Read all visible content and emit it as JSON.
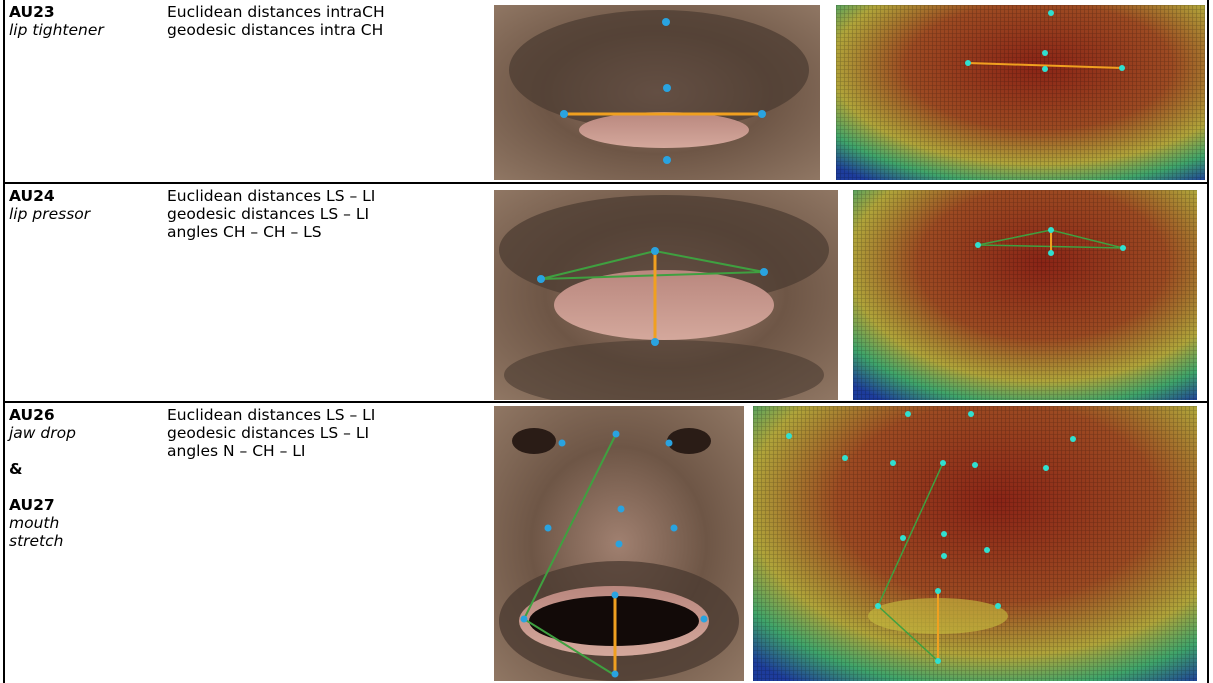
{
  "table": {
    "rows": [
      {
        "au": [
          "AU23",
          "lip tightener"
        ],
        "measures": [
          "Euclidean distances intraCH",
          "geodesic distances intra CH"
        ]
      },
      {
        "au": [
          "AU24",
          "lip pressor"
        ],
        "measures": [
          "Euclidean distances LS – LI",
          "geodesic distances LS – LI",
          "angles CH – CH – LS"
        ]
      },
      {
        "au": [
          "AU26",
          "jaw drop",
          "&",
          "AU27",
          "mouth stretch"
        ],
        "measures": [
          "Euclidean distances LS – LI",
          "geodesic distances LS – LI",
          "angles N – CH – LI"
        ]
      }
    ]
  }
}
